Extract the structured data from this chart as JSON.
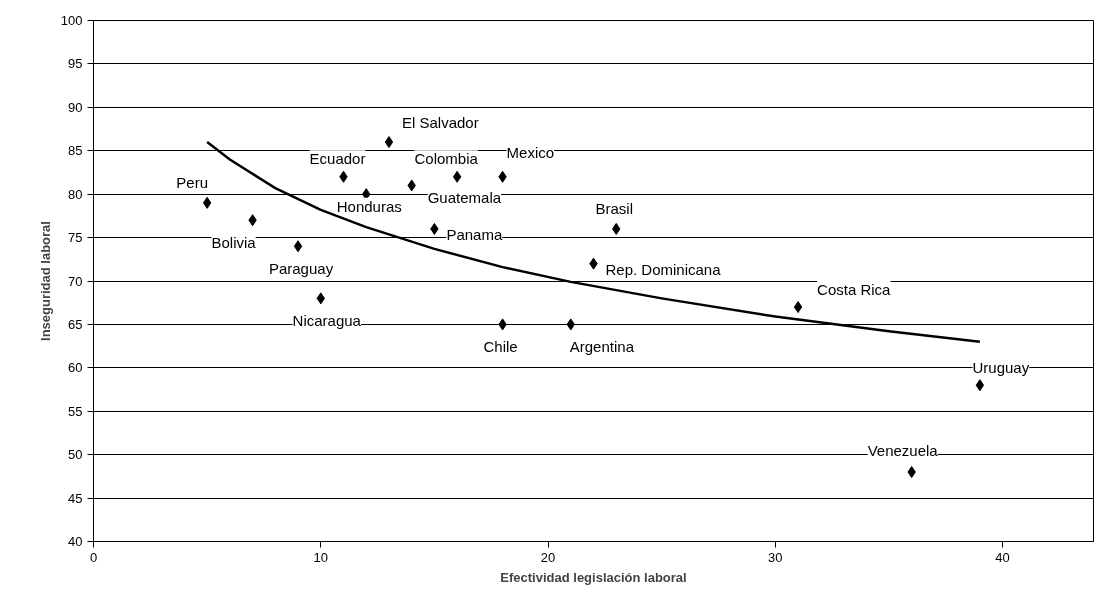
{
  "chart_data": {
    "type": "scatter",
    "xlabel": "Efectividad legislación laboral",
    "ylabel": "Inseguridad laboral",
    "xlim": [
      0,
      44
    ],
    "xticks": [
      0,
      10,
      20,
      30,
      40
    ],
    "ylim": [
      40,
      100
    ],
    "yticks": [
      40,
      45,
      50,
      55,
      60,
      65,
      70,
      75,
      80,
      85,
      90,
      95,
      100
    ],
    "grid": "y",
    "marker": "diamond",
    "series": [
      {
        "color": "#000000",
        "x": [
          5,
          7,
          9,
          10,
          11,
          12,
          13,
          14,
          15,
          16,
          18,
          18,
          21,
          22,
          23,
          31,
          36,
          39
        ],
        "values": [
          79,
          77,
          74,
          68,
          82,
          80,
          86,
          81,
          76,
          82,
          82,
          65,
          65,
          72,
          76,
          67,
          48,
          58
        ]
      },
      {
        "type": "line",
        "color": "#000000",
        "marker": "none",
        "x": [
          5,
          6,
          8,
          10,
          12,
          15,
          18,
          21,
          25,
          30,
          35,
          39
        ],
        "values": [
          86,
          84,
          80.7,
          78.2,
          76.2,
          73.7,
          71.6,
          69.9,
          68,
          65.9,
          64.2,
          63
        ]
      }
    ],
    "annotations": [
      {
        "text": "Peru",
        "x": 5,
        "y": 79
      },
      {
        "text": "Bolivia",
        "x": 7,
        "y": 77
      },
      {
        "text": "Paraguay",
        "x": 9,
        "y": 74
      },
      {
        "text": "Nicaragua",
        "x": 10,
        "y": 68
      },
      {
        "text": "Ecuador",
        "x": 11,
        "y": 82
      },
      {
        "text": "Honduras",
        "x": 12,
        "y": 80
      },
      {
        "text": "El Salvador",
        "x": 13,
        "y": 86
      },
      {
        "text": "Guatemala",
        "x": 14,
        "y": 81
      },
      {
        "text": "Panama",
        "x": 15,
        "y": 76
      },
      {
        "text": "Colombia",
        "x": 16,
        "y": 82
      },
      {
        "text": "Mexico",
        "x": 18,
        "y": 82
      },
      {
        "text": "Chile",
        "x": 18,
        "y": 65
      },
      {
        "text": "Argentina",
        "x": 21,
        "y": 65
      },
      {
        "text": "Rep. Dominicana",
        "x": 22,
        "y": 72
      },
      {
        "text": "Brasil",
        "x": 23,
        "y": 76
      },
      {
        "text": "Costa Rica",
        "x": 31,
        "y": 67
      },
      {
        "text": "Venezuela",
        "x": 36,
        "y": 48
      },
      {
        "text": "Uruguay",
        "x": 39,
        "y": 58
      }
    ]
  }
}
